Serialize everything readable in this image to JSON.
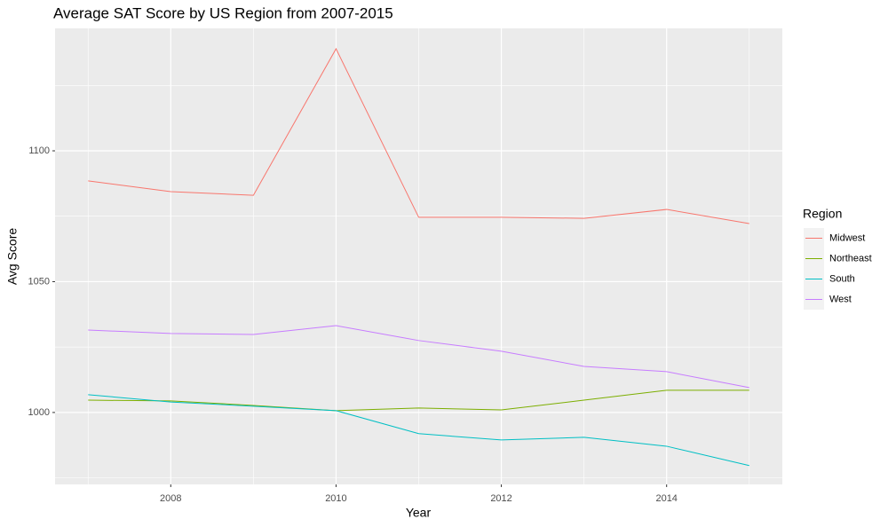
{
  "chart_data": {
    "type": "line",
    "title": "Average SAT Score by US Region from 2007-2015",
    "x_label": "Year",
    "y_label": "Avg Score",
    "x": [
      2007,
      2008,
      2009,
      2010,
      2011,
      2012,
      2013,
      2014,
      2015
    ],
    "series": [
      {
        "name": "Midwest",
        "color": "#F8766D",
        "values": [
          1088.5,
          1084.4,
          1083,
          1139,
          1074.6,
          1074.6,
          1074.2,
          1077.6,
          1072.2
        ]
      },
      {
        "name": "Northeast",
        "color": "#7CAE00",
        "values": [
          1004.7,
          1004.4,
          1002.7,
          1000.7,
          1001.7,
          1001,
          1004.7,
          1008.5,
          1008.5
        ]
      },
      {
        "name": "South",
        "color": "#00BFC4",
        "values": [
          1006.8,
          1004,
          1002.4,
          1000.7,
          991.9,
          989.5,
          990.5,
          987.1,
          979.7
        ]
      },
      {
        "name": "West",
        "color": "#C77CFF",
        "values": [
          1031.5,
          1030.2,
          1029.8,
          1033.2,
          1027.5,
          1023.4,
          1017.6,
          1015.6,
          1009.5
        ]
      }
    ],
    "xlim": [
      2006.6,
      2015.4
    ],
    "xticks": [
      2008,
      2010,
      2012,
      2014
    ],
    "ylim": [
      972.5,
      1146.8
    ],
    "yticks": [
      1000,
      1050,
      1100
    ],
    "grid": true,
    "legend_title": "Region",
    "legend_position": "right"
  }
}
